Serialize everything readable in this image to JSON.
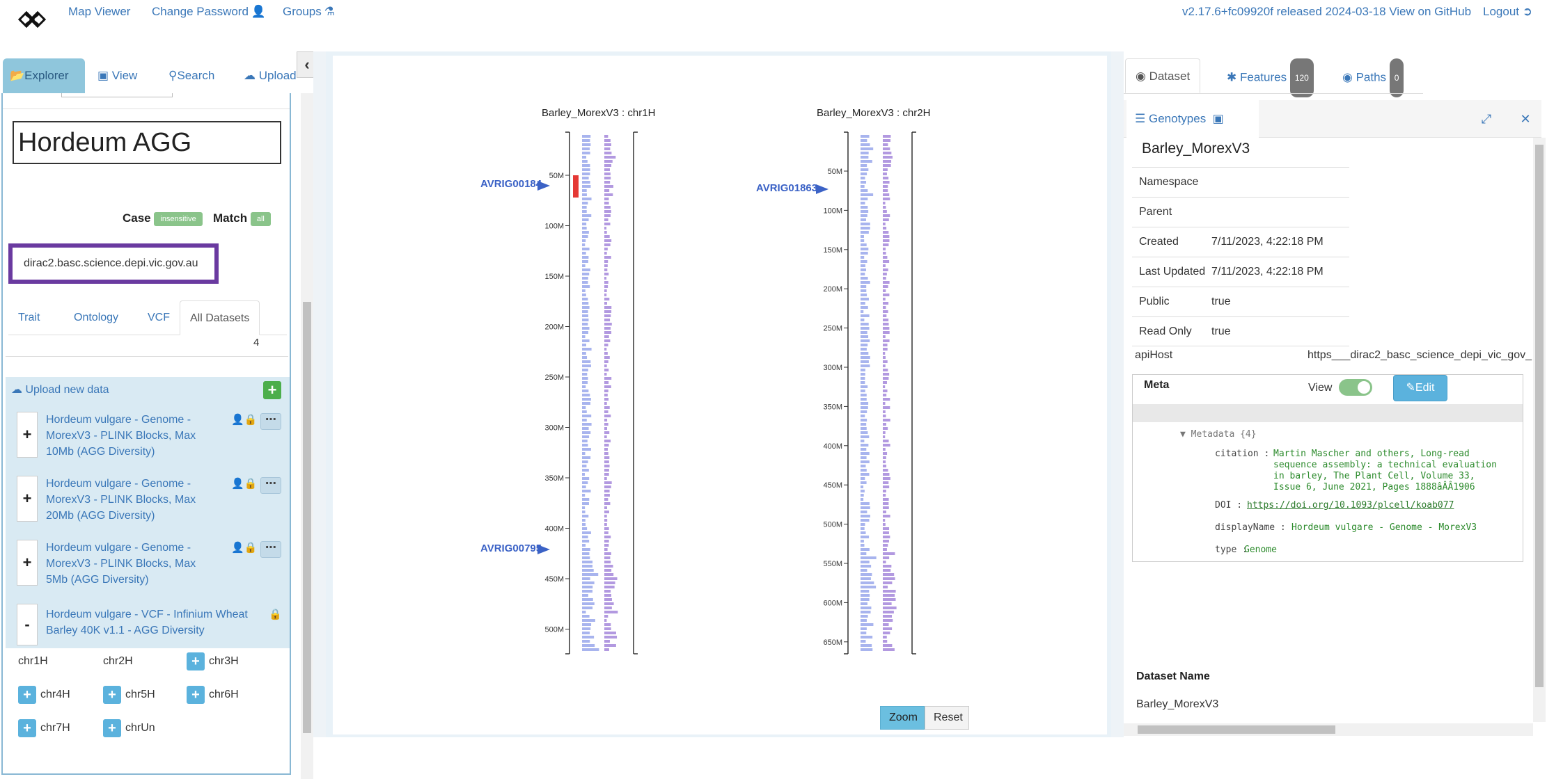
{
  "nav": {
    "links": [
      "Map Viewer",
      "Change Password",
      "Groups"
    ],
    "version_text": "v2.17.6+fc09920f released 2024-03-18 View on GitHub",
    "logout": "Logout"
  },
  "left": {
    "tabs": [
      "Explorer",
      "View",
      "Search",
      "Upload"
    ],
    "search_title": "Hordeum AGG",
    "case_label": "Case",
    "case_value": "insensitive",
    "match_label": "Match",
    "match_value": "all",
    "server": "dirac2.basc.science.depi.vic.gov.au",
    "filter_tabs": [
      "Trait",
      "Ontology",
      "VCF",
      "All Datasets"
    ],
    "count": "4",
    "upload_label": "Upload new data",
    "datasets": [
      {
        "toggle": "+",
        "name": "Hordeum vulgare - Genome - MorexV3 - PLINK Blocks, Max 10Mb (AGG Diversity)"
      },
      {
        "toggle": "+",
        "name": "Hordeum vulgare - Genome - MorexV3 - PLINK Blocks, Max 20Mb (AGG Diversity)"
      },
      {
        "toggle": "+",
        "name": "Hordeum vulgare - Genome - MorexV3 - PLINK Blocks, Max 5Mb (AGG Diversity)"
      },
      {
        "toggle": "-",
        "name": "Hordeum vulgare - VCF - Infinium Wheat Barley 40K v1.1 - AGG Diversity"
      }
    ],
    "chromosomes": [
      "chr1H",
      "chr2H",
      "chr3H",
      "chr4H",
      "chr5H",
      "chr6H",
      "chr7H",
      "chrUn"
    ]
  },
  "center": {
    "axis1": {
      "title": "Barley_MorexV3 : chr1H",
      "ticks": [
        "50M",
        "100M",
        "150M",
        "200M",
        "250M",
        "300M",
        "350M",
        "400M",
        "450M",
        "500M"
      ],
      "features": [
        "AVRIG00184",
        "AVRIG00795"
      ]
    },
    "axis2": {
      "title": "Barley_MorexV3 : chr2H",
      "ticks": [
        "50M",
        "100M",
        "150M",
        "200M",
        "250M",
        "300M",
        "350M",
        "400M",
        "450M",
        "500M",
        "550M",
        "600M",
        "650M"
      ],
      "features": [
        "AVRIG01863"
      ]
    },
    "zoom": "Zoom",
    "reset": "Reset",
    "colors": {
      "bars_blue": "#a8b4ee",
      "bars_purple": "#b299e0",
      "feature": "#3b62c6",
      "highlight": "#e53935"
    }
  },
  "right": {
    "tabs": [
      {
        "label": "Dataset"
      },
      {
        "label": "Features",
        "badge": "120"
      },
      {
        "label": "Paths",
        "badge": "0"
      }
    ],
    "genotypes": "Genotypes",
    "dataset_title": "Barley_MorexV3",
    "props": [
      {
        "k": "Namespace",
        "v": ""
      },
      {
        "k": "Parent",
        "v": ""
      },
      {
        "k": "Created",
        "v": "7/11/2023, 4:22:18 PM"
      },
      {
        "k": "Last Updated",
        "v": "7/11/2023, 4:22:18 PM"
      },
      {
        "k": "Public",
        "v": "true"
      },
      {
        "k": "Read Only",
        "v": "true"
      }
    ],
    "api_key": "apiHost",
    "api_val": "https___dirac2_basc_science_depi_vic_gov_",
    "meta_title": "Meta",
    "view_label": "View",
    "edit_label": "Edit",
    "metadata_header": "Metadata {4}",
    "metadata": {
      "citation_key": "citation",
      "citation": [
        "Martin Mascher and others, Long-read",
        "sequence assembly: a technical evaluation",
        "in barley, The Plant Cell, Volume 33,",
        "Issue 6, June 2021, Pages 1888âÂÂ1906"
      ],
      "doi_key": "DOI",
      "doi": "https://doi.org/10.1093/plcell/koab077",
      "displayName_key": "displayName",
      "displayName": "Hordeum vulgare - Genome - MorexV3",
      "type_key": "type",
      "type": "Genome"
    },
    "dataset_name_label": "Dataset Name",
    "dataset_name": "Barley_MorexV3"
  }
}
